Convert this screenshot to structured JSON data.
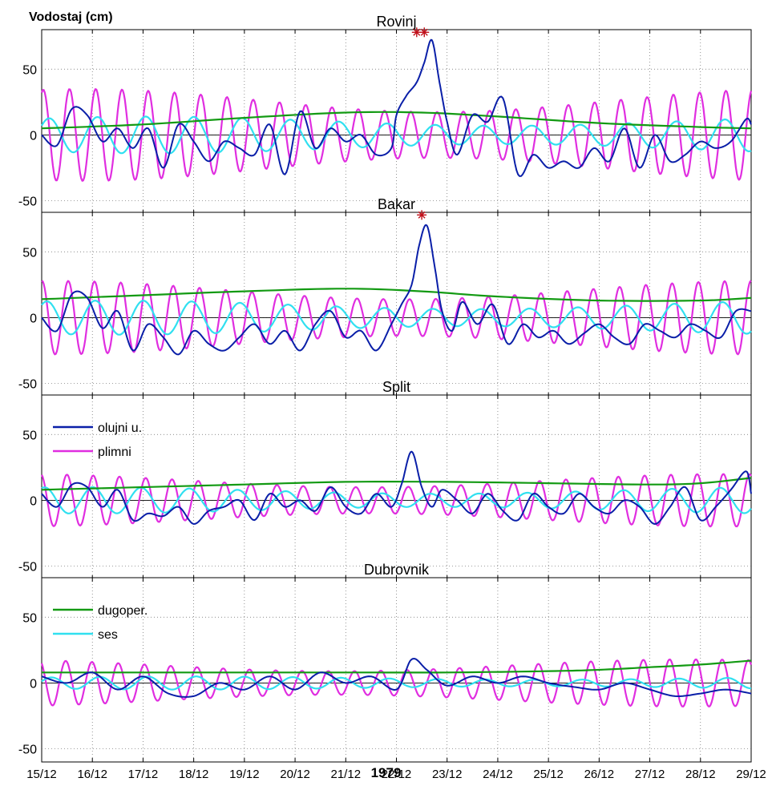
{
  "ylabel": "Vodostaj (cm)",
  "xlabel": "1979",
  "colors": {
    "storm": "#0a1fa8",
    "tide": "#e02ee0",
    "longperiod": "#139a13",
    "seiche": "#30e0f0",
    "marker": "#c0101a"
  },
  "chart_data": [
    {
      "type": "line",
      "title": "Rovinj",
      "x_categories": [
        "15/12",
        "16/12",
        "17/12",
        "18/12",
        "19/12",
        "20/12",
        "21/12",
        "22/12",
        "23/12",
        "24/12",
        "25/12",
        "26/12",
        "27/12",
        "28/12",
        "29/12"
      ],
      "y_ticks": [
        -50,
        0,
        50
      ],
      "ylim": [
        -60,
        80
      ],
      "grid": true,
      "markers": [
        {
          "x": 7.4,
          "y": 78
        },
        {
          "x": 7.55,
          "y": 78
        }
      ],
      "series": [
        {
          "key": "storm",
          "name": "olujni u.",
          "x": [
            0,
            0.3,
            0.6,
            0.9,
            1.2,
            1.5,
            1.8,
            2.1,
            2.4,
            2.7,
            3.0,
            3.3,
            3.6,
            3.9,
            4.2,
            4.5,
            4.8,
            5.1,
            5.4,
            5.7,
            6.0,
            6.3,
            6.6,
            6.9,
            7.0,
            7.2,
            7.4,
            7.55,
            7.7,
            7.85,
            8.0,
            8.2,
            8.5,
            8.8,
            9.1,
            9.4,
            9.7,
            10.0,
            10.3,
            10.6,
            10.9,
            11.2,
            11.5,
            11.8,
            12.1,
            12.4,
            12.7,
            13.0,
            13.3,
            13.6,
            13.9,
            14.0
          ],
          "values": [
            0,
            -8,
            20,
            15,
            -5,
            5,
            -10,
            5,
            -25,
            8,
            -5,
            -20,
            -5,
            -10,
            -15,
            8,
            -30,
            18,
            -10,
            5,
            -5,
            0,
            -15,
            -10,
            15,
            30,
            40,
            55,
            72,
            40,
            10,
            -15,
            15,
            10,
            28,
            -30,
            -15,
            -25,
            -20,
            -25,
            -10,
            -20,
            5,
            -25,
            0,
            -20,
            -15,
            -5,
            -10,
            -5,
            12,
            8
          ]
        },
        {
          "key": "tide",
          "name": "plimni",
          "amp": 35,
          "periods_per_day": 1.93,
          "phase": 1.2
        },
        {
          "key": "longperiod",
          "name": "dugoper.",
          "x": [
            0,
            2,
            4,
            6,
            7.5,
            9,
            11,
            13,
            14
          ],
          "values": [
            5,
            8,
            13,
            17,
            17,
            14,
            9,
            6,
            5
          ]
        },
        {
          "key": "seiche",
          "name": "ses",
          "amp": 14,
          "periods_per_day": 1.05,
          "phase": 0.6
        }
      ]
    },
    {
      "type": "line",
      "title": "Bakar",
      "x_categories": [
        "15/12",
        "16/12",
        "17/12",
        "18/12",
        "19/12",
        "20/12",
        "21/12",
        "22/12",
        "23/12",
        "24/12",
        "25/12",
        "26/12",
        "27/12",
        "28/12",
        "29/12"
      ],
      "y_ticks": [
        -50,
        0,
        50
      ],
      "ylim": [
        -60,
        80
      ],
      "grid": true,
      "markers": [
        {
          "x": 7.5,
          "y": 78
        }
      ],
      "series": [
        {
          "key": "storm",
          "name": "olujni u.",
          "x": [
            0,
            0.3,
            0.6,
            0.9,
            1.2,
            1.5,
            1.8,
            2.1,
            2.4,
            2.7,
            3.0,
            3.3,
            3.6,
            3.9,
            4.2,
            4.5,
            4.8,
            5.1,
            5.4,
            5.7,
            6.0,
            6.3,
            6.6,
            6.9,
            7.1,
            7.3,
            7.45,
            7.6,
            7.75,
            7.9,
            8.1,
            8.3,
            8.6,
            8.9,
            9.2,
            9.5,
            9.8,
            10.1,
            10.4,
            10.7,
            11.0,
            11.3,
            11.6,
            11.9,
            12.2,
            12.5,
            12.8,
            13.1,
            13.4,
            13.7,
            14.0
          ],
          "values": [
            0,
            -10,
            18,
            15,
            -8,
            5,
            -25,
            -5,
            -15,
            -28,
            -10,
            -20,
            -25,
            -15,
            -5,
            -20,
            -10,
            -25,
            -5,
            5,
            -15,
            -10,
            -25,
            -5,
            10,
            25,
            55,
            70,
            40,
            5,
            -10,
            12,
            -5,
            10,
            -20,
            -5,
            -15,
            -10,
            -20,
            -12,
            -5,
            -15,
            -20,
            -5,
            -10,
            -15,
            -5,
            -10,
            -15,
            5,
            5
          ]
        },
        {
          "key": "tide",
          "name": "plimni",
          "amp": 28,
          "periods_per_day": 1.93,
          "phase": 1.5
        },
        {
          "key": "longperiod",
          "name": "dugoper.",
          "x": [
            0,
            2,
            4,
            6,
            7.5,
            9,
            11,
            13,
            14
          ],
          "values": [
            14,
            17,
            20,
            22,
            20,
            16,
            13,
            13,
            15
          ]
        },
        {
          "key": "seiche",
          "name": "ses",
          "amp": 13,
          "periods_per_day": 1.05,
          "phase": 0.9
        }
      ]
    },
    {
      "type": "line",
      "title": "Split",
      "x_categories": [
        "15/12",
        "16/12",
        "17/12",
        "18/12",
        "19/12",
        "20/12",
        "21/12",
        "22/12",
        "23/12",
        "24/12",
        "25/12",
        "26/12",
        "27/12",
        "28/12",
        "29/12"
      ],
      "y_ticks": [
        -50,
        0,
        50
      ],
      "ylim": [
        -60,
        80
      ],
      "grid": true,
      "legend": [
        "storm",
        "tide"
      ],
      "legend_position": "top-left",
      "series": [
        {
          "key": "storm",
          "name": "olujni u.",
          "x": [
            0,
            0.3,
            0.6,
            0.9,
            1.2,
            1.5,
            1.8,
            2.1,
            2.4,
            2.7,
            3.0,
            3.3,
            3.6,
            3.9,
            4.2,
            4.5,
            4.8,
            5.1,
            5.4,
            5.7,
            6.0,
            6.3,
            6.6,
            6.9,
            7.1,
            7.3,
            7.5,
            7.7,
            7.9,
            8.2,
            8.5,
            8.8,
            9.1,
            9.4,
            9.7,
            10.0,
            10.3,
            10.6,
            10.9,
            11.2,
            11.5,
            11.8,
            12.1,
            12.4,
            12.7,
            13.0,
            13.3,
            13.6,
            13.9,
            14.0
          ],
          "values": [
            5,
            -5,
            12,
            10,
            -5,
            8,
            -15,
            -10,
            -12,
            -5,
            -18,
            -8,
            -5,
            0,
            -15,
            5,
            -5,
            0,
            -8,
            10,
            -5,
            -10,
            5,
            -5,
            12,
            37,
            10,
            -5,
            8,
            0,
            -10,
            5,
            -8,
            -15,
            5,
            -5,
            -10,
            5,
            -5,
            -10,
            0,
            -5,
            -18,
            -5,
            10,
            -15,
            -5,
            8,
            22,
            5
          ]
        },
        {
          "key": "tide",
          "name": "plimni",
          "amp": 20,
          "periods_per_day": 1.93,
          "phase": 1.8
        },
        {
          "key": "longperiod",
          "name": "dugoper.",
          "x": [
            0,
            2,
            4,
            6,
            8,
            10,
            12,
            13,
            14
          ],
          "values": [
            8,
            10,
            12,
            14,
            14,
            13,
            12,
            13,
            17
          ]
        },
        {
          "key": "seiche",
          "name": "ses",
          "amp": 10,
          "periods_per_day": 1.05,
          "phase": 1.2
        }
      ]
    },
    {
      "type": "line",
      "title": "Dubrovnik",
      "x_categories": [
        "15/12",
        "16/12",
        "17/12",
        "18/12",
        "19/12",
        "20/12",
        "21/12",
        "22/12",
        "23/12",
        "24/12",
        "25/12",
        "26/12",
        "27/12",
        "28/12",
        "29/12"
      ],
      "y_ticks": [
        -50,
        0,
        50
      ],
      "ylim": [
        -60,
        80
      ],
      "grid": true,
      "legend": [
        "longperiod",
        "seiche"
      ],
      "legend_position": "top-left",
      "series": [
        {
          "key": "storm",
          "name": "olujni u.",
          "x": [
            0,
            0.5,
            1.0,
            1.5,
            2.0,
            2.5,
            3.0,
            3.5,
            4.0,
            4.5,
            5.0,
            5.5,
            6.0,
            6.5,
            7.0,
            7.3,
            7.6,
            8.0,
            8.5,
            9.0,
            9.5,
            10.0,
            10.5,
            11.0,
            11.5,
            12.0,
            12.5,
            13.0,
            13.5,
            14.0
          ],
          "values": [
            5,
            0,
            8,
            -5,
            5,
            -8,
            -10,
            0,
            -5,
            5,
            -5,
            8,
            0,
            5,
            -5,
            18,
            10,
            -2,
            5,
            0,
            5,
            0,
            -3,
            -5,
            0,
            -5,
            -10,
            -8,
            -5,
            -8
          ]
        },
        {
          "key": "tide",
          "name": "plimni",
          "amp": 18,
          "periods_per_day": 1.93,
          "phase": 2.1
        },
        {
          "key": "longperiod",
          "name": "dugoper.",
          "x": [
            0,
            2,
            4,
            6,
            8,
            10,
            11,
            12,
            13,
            14
          ],
          "values": [
            8,
            8,
            8,
            8,
            8,
            9,
            10,
            12,
            14,
            17
          ]
        },
        {
          "key": "seiche",
          "name": "ses",
          "amp": 5,
          "periods_per_day": 1.05,
          "phase": 0.3
        }
      ]
    }
  ]
}
